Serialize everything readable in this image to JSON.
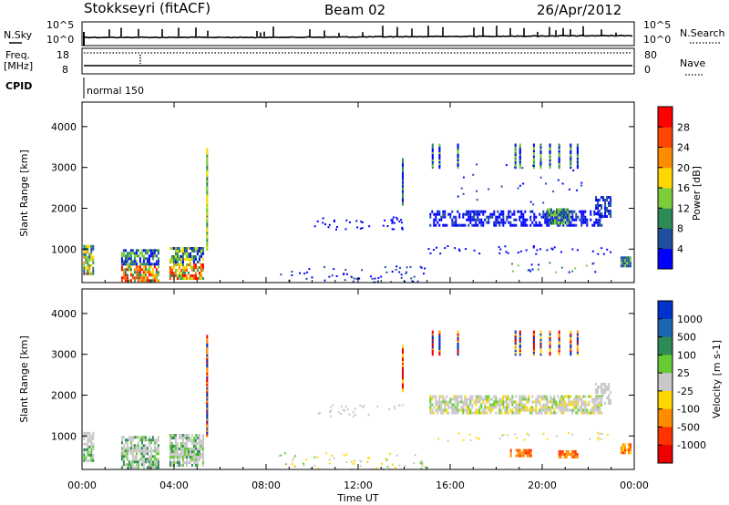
{
  "header": {
    "station": "Stokkseyri (fitACF)",
    "beam": "Beam 02",
    "date": "26/Apr/2012"
  },
  "top_panel": {
    "left_label": "N.Sky",
    "right_label": "N.Search",
    "left_ticks": [
      "10^5",
      "10^0"
    ],
    "right_ticks": [
      "10^5",
      "10^0"
    ]
  },
  "freq_panel": {
    "left_label_1": "Freq.",
    "left_label_2": "[MHz]",
    "right_label": "Nave",
    "left_ticks": [
      "18",
      "8"
    ],
    "right_ticks": [
      "80",
      "0"
    ]
  },
  "cpid": {
    "label": "CPID",
    "mode": "normal 150"
  },
  "x_axis": {
    "label": "Time UT",
    "ticks": [
      "00:00",
      "04:00",
      "08:00",
      "12:00",
      "16:00",
      "20:00",
      "00:00"
    ]
  },
  "chart_data": [
    {
      "type": "heatmap",
      "name": "Power",
      "ylabel": "Slant Range [km]",
      "yticks": [
        1000,
        2000,
        3000,
        4000
      ],
      "ylim": [
        180,
        4600
      ],
      "xlim_hours": [
        0,
        24
      ],
      "colorbar": {
        "label": "Power [dB]",
        "ticks": [
          "4",
          "8",
          "12",
          "16",
          "20",
          "24",
          "28"
        ],
        "colors": [
          "#0000ff",
          "#1f4fa0",
          "#2e8b57",
          "#7ccd3a",
          "#ffd700",
          "#ff8c00",
          "#ff4500",
          "#ff0000"
        ]
      },
      "regions": [
        {
          "t": [
            0.05,
            0.45
          ],
          "r": [
            400,
            1100
          ],
          "level": 3
        },
        {
          "t": [
            1.7,
            3.3
          ],
          "r": [
            250,
            1000
          ],
          "level": 5
        },
        {
          "t": [
            3.8,
            5.3
          ],
          "r": [
            250,
            1050
          ],
          "level": 4
        },
        {
          "t": [
            15.1,
            22.6
          ],
          "r": [
            1550,
            2050
          ],
          "level": 1
        },
        {
          "t": [
            23.4,
            23.8
          ],
          "r": [
            550,
            820
          ],
          "level": 2
        }
      ]
    },
    {
      "type": "heatmap",
      "name": "Velocity",
      "ylabel": "Slant Range [km]",
      "yticks": [
        1000,
        2000,
        3000,
        4000
      ],
      "ylim": [
        180,
        4600
      ],
      "xlim_hours": [
        0,
        24
      ],
      "colorbar": {
        "label": "Velocity [m s-1]",
        "ticks": [
          "1000",
          "500",
          "100",
          "25",
          "-25",
          "-100",
          "-500",
          "-1000"
        ],
        "colors": [
          "#0033cc",
          "#1a66b3",
          "#2e8b57",
          "#66cc33",
          "#c8c8c8",
          "#ffd700",
          "#ff8c00",
          "#ff3300",
          "#ee0000"
        ]
      },
      "regions": [
        {
          "t": [
            0.05,
            0.5
          ],
          "r": [
            400,
            1100
          ],
          "level": "ground"
        },
        {
          "t": [
            1.7,
            3.3
          ],
          "r": [
            250,
            1000
          ],
          "level": "ground"
        },
        {
          "t": [
            3.8,
            5.3
          ],
          "r": [
            250,
            1050
          ],
          "level": "ground"
        },
        {
          "t": [
            15.1,
            22.6
          ],
          "r": [
            1550,
            2050
          ],
          "level": "near-zero"
        },
        {
          "t": [
            23.4,
            23.8
          ],
          "r": [
            550,
            820
          ],
          "level": "negative"
        }
      ]
    }
  ]
}
